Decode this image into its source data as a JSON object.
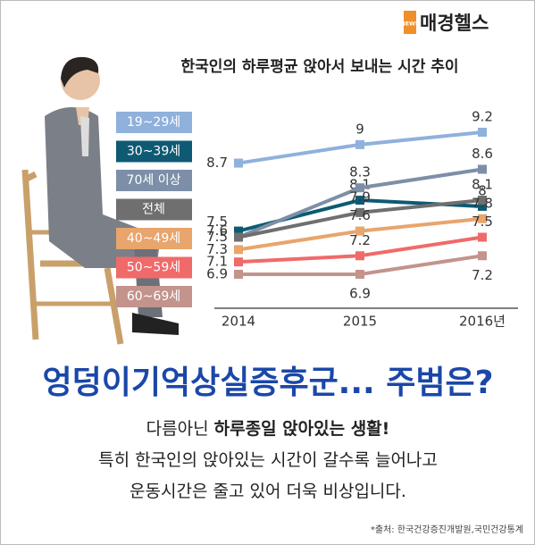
{
  "header": {
    "logo_tag": "NEWS",
    "logo": "매경헬스"
  },
  "chart_data": {
    "type": "line",
    "title": "한국인의 하루평균 앉아서 보내는 시간 추이",
    "categories": [
      "2014",
      "2015",
      "2016년"
    ],
    "series": [
      {
        "name": "19~29세",
        "color": "#8fb1dc",
        "values": [
          8.7,
          9.0,
          9.2
        ]
      },
      {
        "name": "30~39세",
        "color": "#0e5a73",
        "values": [
          7.6,
          8.1,
          8.0
        ]
      },
      {
        "name": "70세 이상",
        "color": "#7d8fa8",
        "values": [
          7.5,
          8.3,
          8.6
        ]
      },
      {
        "name": "전체",
        "color": "#6f6f6f",
        "values": [
          7.5,
          7.9,
          8.1
        ]
      },
      {
        "name": "40~49세",
        "color": "#e8a56c",
        "values": [
          7.3,
          7.6,
          7.8
        ]
      },
      {
        "name": "50~59세",
        "color": "#f06a6a",
        "values": [
          7.1,
          7.2,
          7.5
        ]
      },
      {
        "name": "60~69세",
        "color": "#c3948c",
        "values": [
          6.9,
          6.9,
          7.2
        ]
      }
    ]
  },
  "headline": "엉덩이기억상실증후군... 주범은?",
  "body": [
    [
      "다름아닌 ",
      "하루종일 앉아있는 생활!"
    ],
    [
      "특히 한국인의 앉아있는 시간이 갈수록 늘어나고"
    ],
    [
      "운동시간은 줄고 있어 더욱 비상입니다."
    ]
  ],
  "source": "*출처: 한국건강증진개발원,국민건강통계"
}
